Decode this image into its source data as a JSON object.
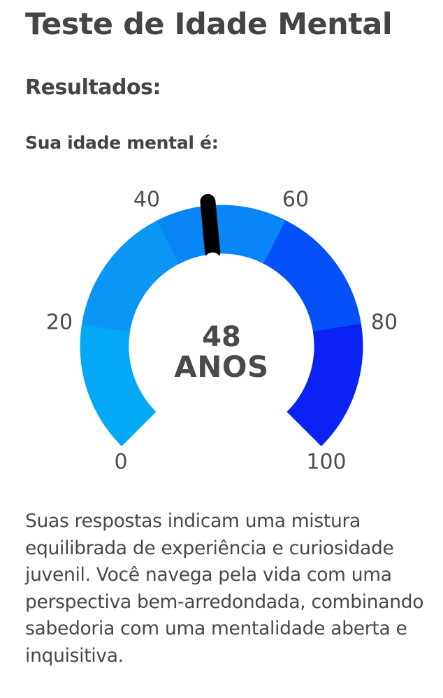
{
  "page": {
    "title": "Teste de Idade Mental",
    "section_title": "Resultados:",
    "result_label": "Sua idade mental é:"
  },
  "gauge": {
    "value": "48",
    "unit": "ANOS",
    "ticks": [
      "0",
      "20",
      "40",
      "60",
      "80",
      "100"
    ],
    "colors": {
      "segment_0_20": "#03A9F4",
      "segment_20_40": "#0A96F4",
      "segment_40_60": "#0886F8",
      "segment_60_80": "#0550F9",
      "segment_80_100": "#0A22F3",
      "needle": "#000000"
    }
  },
  "description": "Suas respostas indicam uma mistura equilibrada de experiência e curiosidade juvenil. Você navega pela vida com uma perspectiva bem-arredondada, combinando sabedoria com uma mentalidade aberta e inquisitiva.",
  "chart_data": {
    "type": "gauge",
    "title": "Sua idade mental é:",
    "value": 48,
    "value_label": "48 ANOS",
    "min": 0,
    "max": 100,
    "tick_labels": [
      "0",
      "20",
      "40",
      "60",
      "80",
      "100"
    ],
    "segments": [
      {
        "from": 0,
        "to": 20,
        "color": "#03A9F4"
      },
      {
        "from": 20,
        "to": 40,
        "color": "#0A96F4"
      },
      {
        "from": 40,
        "to": 60,
        "color": "#0886F8"
      },
      {
        "from": 60,
        "to": 80,
        "color": "#0550F9"
      },
      {
        "from": 80,
        "to": 100,
        "color": "#0A22F3"
      }
    ],
    "arc_degrees": 270,
    "needle_color": "#000000"
  }
}
